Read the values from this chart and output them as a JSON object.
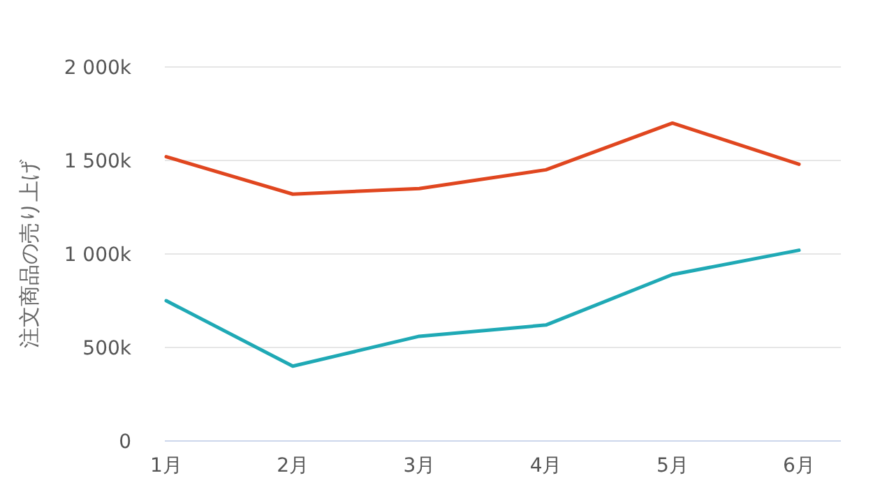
{
  "chart_data": {
    "type": "line",
    "ylabel": "注文商品の売り上げ",
    "categories": [
      "1月",
      "2月",
      "3月",
      "4月",
      "5月",
      "6月"
    ],
    "series": [
      {
        "color": "#e0461f",
        "values": [
          1520,
          1320,
          1350,
          1450,
          1700,
          1480
        ]
      },
      {
        "color": "#1fa9b5",
        "values": [
          750,
          400,
          560,
          620,
          890,
          1020
        ]
      }
    ],
    "ylim": [
      0,
      2000
    ],
    "yticks": [
      0,
      {
        "value": 500,
        "label": "500k"
      },
      {
        "value": 1000,
        "label": "1 000k"
      },
      {
        "value": 1500,
        "label": "1 500k"
      },
      {
        "value": 2000,
        "label": "2 000k"
      }
    ],
    "grid": "y"
  }
}
